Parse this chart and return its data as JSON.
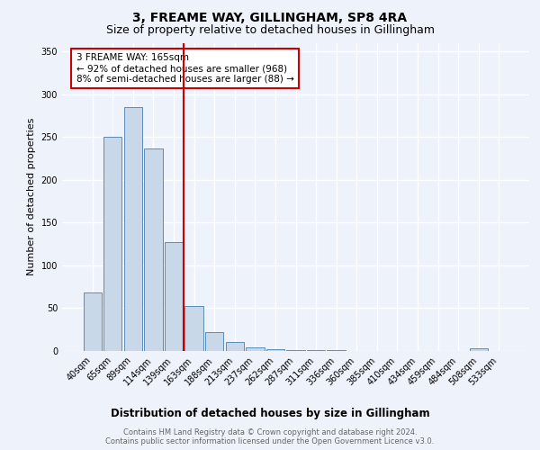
{
  "title": "3, FREAME WAY, GILLINGHAM, SP8 4RA",
  "subtitle": "Size of property relative to detached houses in Gillingham",
  "xlabel": "Distribution of detached houses by size in Gillingham",
  "ylabel": "Number of detached properties",
  "categories": [
    "40sqm",
    "65sqm",
    "89sqm",
    "114sqm",
    "139sqm",
    "163sqm",
    "188sqm",
    "213sqm",
    "237sqm",
    "262sqm",
    "287sqm",
    "311sqm",
    "336sqm",
    "360sqm",
    "385sqm",
    "410sqm",
    "434sqm",
    "459sqm",
    "484sqm",
    "508sqm",
    "533sqm"
  ],
  "values": [
    68,
    250,
    285,
    237,
    127,
    53,
    22,
    11,
    4,
    2,
    1,
    1,
    1,
    0,
    0,
    0,
    0,
    0,
    0,
    3,
    0
  ],
  "bar_color": "#c8d8e8",
  "bar_edge_color": "#5b8db8",
  "vline_index": 5,
  "vline_color": "#cc0000",
  "annotation_text": "3 FREAME WAY: 165sqm\n← 92% of detached houses are smaller (968)\n8% of semi-detached houses are larger (88) →",
  "annotation_box_color": "#ffffff",
  "annotation_border_color": "#cc0000",
  "footer_text": "Contains HM Land Registry data © Crown copyright and database right 2024.\nContains public sector information licensed under the Open Government Licence v3.0.",
  "background_color": "#eef2fb",
  "grid_color": "#ffffff",
  "title_fontsize": 10,
  "subtitle_fontsize": 9,
  "ylabel_fontsize": 8,
  "xlabel_fontsize": 8.5,
  "tick_fontsize": 7,
  "footer_fontsize": 6,
  "annotation_fontsize": 7.5,
  "ylim": [
    0,
    360
  ],
  "yticks": [
    0,
    50,
    100,
    150,
    200,
    250,
    300,
    350
  ]
}
